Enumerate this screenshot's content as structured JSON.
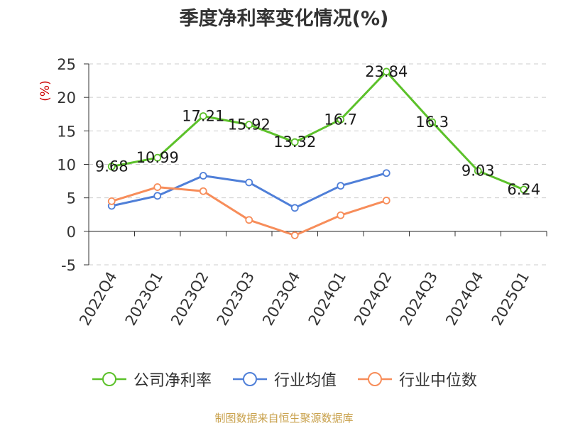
{
  "chart_data": {
    "type": "line",
    "title": "季度净利率变化情况(%)",
    "ylabel": "(%)",
    "xlabel": "",
    "categories": [
      "2022Q4",
      "2023Q1",
      "2023Q2",
      "2023Q3",
      "2023Q4",
      "2024Q1",
      "2024Q2",
      "2024Q3",
      "2024Q4",
      "2025Q1"
    ],
    "ylim": [
      -5,
      25
    ],
    "yticks": [
      -5,
      0,
      5,
      10,
      15,
      20,
      25
    ],
    "grid": true,
    "legend_position": "bottom",
    "series": [
      {
        "name": "公司净利率",
        "color": "#5cc12a",
        "values": [
          9.68,
          10.99,
          17.21,
          15.92,
          13.32,
          16.7,
          23.84,
          16.3,
          9.03,
          6.24
        ],
        "data_labels": [
          "9.68",
          "10.99",
          "17.21",
          "15.92",
          "13.32",
          "16.7",
          "23.84",
          "16.3",
          "9.03",
          "6.24"
        ]
      },
      {
        "name": "行业均值",
        "color": "#4f7fd8",
        "values": [
          3.8,
          5.3,
          8.3,
          7.3,
          3.5,
          6.8,
          8.7,
          null,
          null,
          null
        ]
      },
      {
        "name": "行业中位数",
        "color": "#f78d5a",
        "values": [
          4.5,
          6.6,
          6.0,
          1.7,
          -0.6,
          2.4,
          4.6,
          null,
          null,
          null
        ]
      }
    ]
  },
  "source_note": "制图数据来自恒生聚源数据库"
}
